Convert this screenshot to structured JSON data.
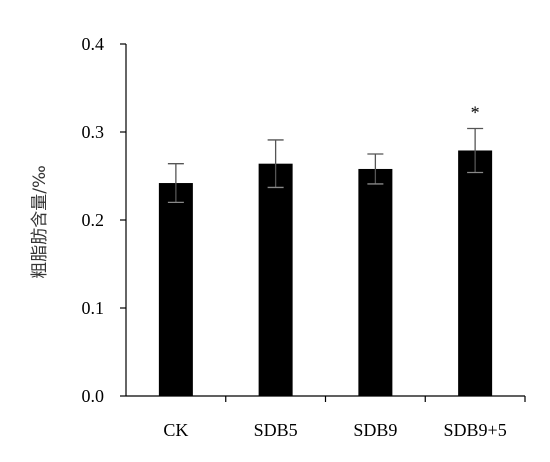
{
  "chart_data": {
    "type": "bar",
    "title": "",
    "xlabel": "",
    "ylabel": "粗脂肪含量/‰",
    "ylim": [
      0,
      0.4
    ],
    "yticks": [
      "0.0",
      "0.1",
      "0.2",
      "0.3",
      "0.4"
    ],
    "categories": [
      "CK",
      "SDB5",
      "SDB9",
      "SDB9+5"
    ],
    "values": [
      0.242,
      0.264,
      0.258,
      0.279
    ],
    "errors": [
      0.022,
      0.027,
      0.017,
      0.025
    ],
    "annotations": [
      "",
      "",
      "",
      "*"
    ],
    "bar_color": "#000000",
    "grid": false,
    "legend": "none"
  }
}
